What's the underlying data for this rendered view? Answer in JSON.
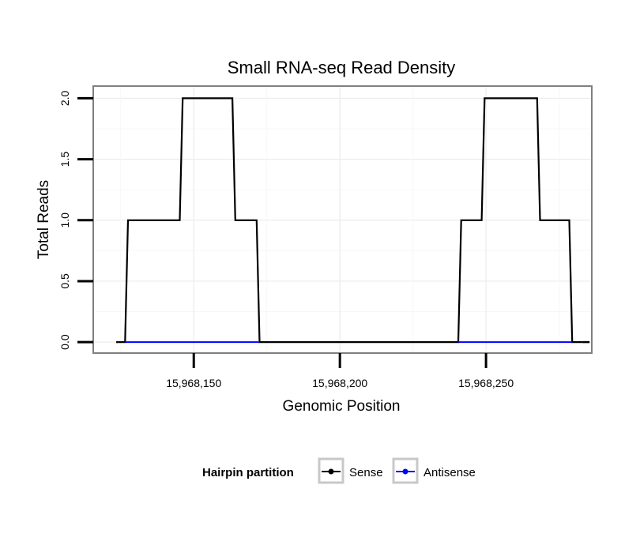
{
  "chart_data": {
    "type": "line",
    "title": "Small RNA-seq Read Density",
    "xlabel": "Genomic Position",
    "ylabel": "Total Reads",
    "xlim": [
      15968115.6,
      15968286.2
    ],
    "ylim": [
      -0.09,
      2.1
    ],
    "grid": true,
    "x_ticks": [
      15968150,
      15968200,
      15968250
    ],
    "x_tick_labels": [
      "15,968,150",
      "15,968,200",
      "15,968,250"
    ],
    "y_ticks": [
      0,
      0.5,
      1,
      1.5,
      2
    ],
    "y_tick_labels": [
      "0.0",
      "0.5",
      "1.0",
      "1.5",
      "2.0"
    ],
    "legend": {
      "title": "Hairpin partition",
      "position": "bottom",
      "entries": [
        {
          "name": "Sense",
          "color": "#000000"
        },
        {
          "name": "Antisense",
          "color": "#0000ff"
        }
      ]
    },
    "series": [
      {
        "name": "Sense",
        "color": "#000000",
        "x": [
          15968124,
          15968126.5,
          15968127.5,
          15968145.2,
          15968146.2,
          15968163.2,
          15968164.2,
          15968171.5,
          15968172.5,
          15968240.5,
          15968241.5,
          15968248.5,
          15968249.5,
          15968267.5,
          15968268.5,
          15968278.5,
          15968279.5,
          15968283
        ],
        "values": [
          0,
          0,
          1,
          1,
          2,
          2,
          1,
          1,
          0,
          0,
          1,
          1,
          2,
          2,
          1,
          1,
          0,
          0
        ]
      },
      {
        "name": "Antisense",
        "color": "#0000ff",
        "x": [
          15968126.5,
          15968172.5
        ],
        "values": [
          0,
          0
        ]
      },
      {
        "name": "Antisense",
        "color": "#0000ff",
        "x": [
          15968240.5,
          15968279.5
        ],
        "values": [
          0,
          0
        ]
      }
    ]
  }
}
